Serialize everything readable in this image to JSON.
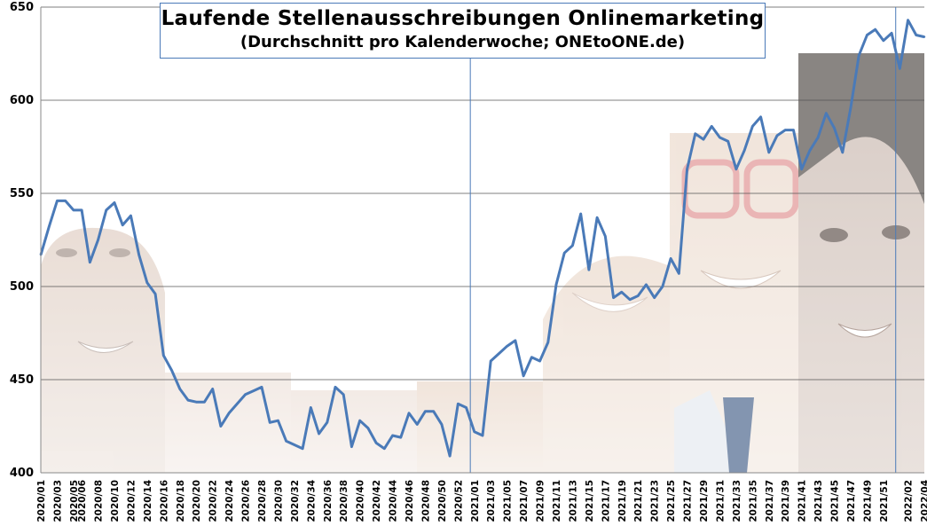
{
  "chart_data": {
    "type": "line",
    "title": "Laufende Stellenausschreibungen Onlinemarketing",
    "subtitle": "(Durchschnitt pro Kalenderwoche; ONEtoONE.de)",
    "xlabel": "",
    "ylabel": "",
    "ylim": [
      400,
      650
    ],
    "yticks": [
      400,
      450,
      500,
      550,
      600,
      650
    ],
    "grid": true,
    "legend": "none",
    "line_color": "#4a7ab8",
    "x": [
      "2020/01",
      "2020/02",
      "2020/03",
      "2020/04",
      "2020/05",
      "2020/06",
      "2020/07",
      "2020/08",
      "2020/09",
      "2020/10",
      "2020/11",
      "2020/12",
      "2020/13",
      "2020/14",
      "2020/15",
      "2020/16",
      "2020/17",
      "2020/18",
      "2020/19",
      "2020/20",
      "2020/21",
      "2020/22",
      "2020/23",
      "2020/24",
      "2020/25",
      "2020/26",
      "2020/27",
      "2020/28",
      "2020/29",
      "2020/30",
      "2020/31",
      "2020/32",
      "2020/33",
      "2020/34",
      "2020/35",
      "2020/36",
      "2020/37",
      "2020/38",
      "2020/39",
      "2020/40",
      "2020/41",
      "2020/42",
      "2020/43",
      "2020/44",
      "2020/45",
      "2020/46",
      "2020/47",
      "2020/48",
      "2020/49",
      "2020/50",
      "2020/51",
      "2020/52",
      "2020/53",
      "2021/01",
      "2021/02",
      "2021/03",
      "2021/04",
      "2021/05",
      "2021/06",
      "2021/07",
      "2021/08",
      "2021/09",
      "2021/10",
      "2021/11",
      "2021/12",
      "2021/13",
      "2021/14",
      "2021/15",
      "2021/16",
      "2021/17",
      "2021/18",
      "2021/19",
      "2021/20",
      "2021/21",
      "2021/22",
      "2021/23",
      "2021/24",
      "2021/25",
      "2021/26",
      "2021/27",
      "2021/28",
      "2021/29",
      "2021/30",
      "2021/31",
      "2021/32",
      "2021/33",
      "2021/34",
      "2021/35",
      "2021/36",
      "2021/37",
      "2021/38",
      "2021/39",
      "2021/40",
      "2021/41",
      "2021/42",
      "2021/43",
      "2021/44",
      "2021/45",
      "2021/46",
      "2021/47",
      "2021/48",
      "2021/49",
      "2021/50",
      "2021/51",
      "2021/52",
      "2022/01",
      "2022/02",
      "2022/03",
      "2022/04"
    ],
    "x_tick_labels": [
      "2020/01",
      "2020/03",
      "2020/05",
      "2020/06",
      "2020/08",
      "2020/10",
      "2020/12",
      "2020/14",
      "2020/16",
      "2020/18",
      "2020/20",
      "2020/22",
      "2020/24",
      "2020/26",
      "2020/28",
      "2020/30",
      "2020/32",
      "2020/34",
      "2020/36",
      "2020/38",
      "2020/40",
      "2020/42",
      "2020/44",
      "2020/46",
      "2020/48",
      "2020/50",
      "2020/52",
      "2021/01",
      "2021/03",
      "2021/05",
      "2021/07",
      "2021/09",
      "2021/11",
      "2021/13",
      "2021/15",
      "2021/17",
      "2021/19",
      "2021/21",
      "2021/23",
      "2021/25",
      "2021/27",
      "2021/29",
      "2021/31",
      "2021/33",
      "2021/35",
      "2021/37",
      "2021/39",
      "2021/41",
      "2021/43",
      "2021/45",
      "2021/47",
      "2021/49",
      "2021/51",
      "2022/02",
      "2022/04"
    ],
    "series": [
      {
        "values": [
          517,
          532,
          546,
          546,
          541,
          541,
          513,
          525,
          541,
          545,
          533,
          538,
          517,
          502,
          496,
          463,
          455,
          445,
          439,
          438,
          438,
          445,
          425,
          432,
          437,
          442,
          444,
          446,
          427,
          428,
          417,
          415,
          413,
          435,
          421,
          427,
          446,
          442,
          414,
          428,
          424,
          416,
          413,
          420,
          419,
          432,
          426,
          433,
          433,
          426,
          409,
          437,
          435,
          422,
          420,
          460,
          464,
          468,
          471,
          452,
          462,
          460,
          470,
          501,
          518,
          522,
          539,
          509,
          537,
          527,
          494,
          497,
          493,
          495,
          501,
          494,
          500,
          515,
          507,
          563,
          582,
          579,
          586,
          580,
          578,
          563,
          573,
          586,
          591,
          572,
          581,
          584,
          584,
          563,
          573,
          580,
          593,
          585,
          572,
          596,
          624,
          635,
          638,
          632,
          636,
          617,
          643,
          635,
          634
        ]
      }
    ]
  }
}
